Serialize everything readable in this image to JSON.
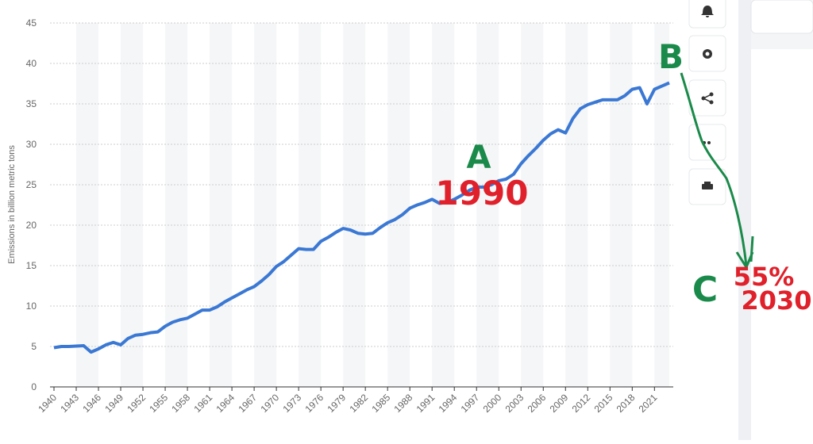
{
  "chart_data": {
    "type": "line",
    "y_label": "Emissions in billion metric tons",
    "x": [
      1940,
      1941,
      1942,
      1943,
      1944,
      1945,
      1946,
      1947,
      1948,
      1949,
      1950,
      1951,
      1952,
      1953,
      1954,
      1955,
      1956,
      1957,
      1958,
      1959,
      1960,
      1961,
      1962,
      1963,
      1964,
      1965,
      1966,
      1967,
      1968,
      1969,
      1970,
      1971,
      1972,
      1973,
      1974,
      1975,
      1976,
      1977,
      1978,
      1979,
      1980,
      1981,
      1982,
      1983,
      1984,
      1985,
      1986,
      1987,
      1988,
      1989,
      1990,
      1991,
      1992,
      1993,
      1994,
      1995,
      1996,
      1997,
      1998,
      1999,
      2000,
      2001,
      2002,
      2003,
      2004,
      2005,
      2006,
      2007,
      2008,
      2009,
      2010,
      2011,
      2012,
      2013,
      2014,
      2015,
      2016,
      2017,
      2018,
      2019,
      2020,
      2021,
      2022,
      2023
    ],
    "series": [
      {
        "name": "Emissions",
        "color": "#3a78d4",
        "values": [
          4.85,
          5.0,
          5.0,
          5.05,
          5.1,
          4.3,
          4.7,
          5.2,
          5.5,
          5.2,
          6.0,
          6.4,
          6.5,
          6.7,
          6.8,
          7.5,
          8.0,
          8.3,
          8.5,
          9.0,
          9.5,
          9.5,
          9.9,
          10.5,
          11.0,
          11.5,
          12.0,
          12.4,
          13.1,
          13.9,
          14.9,
          15.5,
          16.3,
          17.1,
          17.0,
          17.0,
          18.0,
          18.5,
          19.1,
          19.6,
          19.4,
          19.0,
          18.9,
          19.0,
          19.7,
          20.3,
          20.7,
          21.3,
          22.1,
          22.5,
          22.8,
          23.2,
          22.7,
          22.8,
          23.2,
          23.7,
          24.3,
          24.7,
          24.7,
          25.0,
          25.5,
          25.7,
          26.3,
          27.6,
          28.6,
          29.5,
          30.5,
          31.3,
          31.8,
          31.4,
          33.2,
          34.4,
          34.9,
          35.2,
          35.5,
          35.5,
          35.5,
          36.0,
          36.8,
          37.0,
          35.0,
          36.8,
          37.2,
          37.6
        ]
      }
    ],
    "xlim": [
      1940,
      2023
    ],
    "xticks": [
      1940,
      1943,
      1946,
      1949,
      1952,
      1955,
      1958,
      1961,
      1964,
      1967,
      1970,
      1973,
      1976,
      1979,
      1982,
      1985,
      1988,
      1991,
      1994,
      1997,
      2000,
      2003,
      2006,
      2009,
      2012,
      2015,
      2018,
      2021
    ],
    "ylim": [
      0,
      45
    ],
    "yticks": [
      0,
      5,
      10,
      15,
      20,
      25,
      30,
      35,
      40,
      45
    ],
    "grid": true,
    "annotations": [
      {
        "text": "A",
        "color": "#1a8a4a"
      },
      {
        "text": "1990",
        "color": "#e0202a"
      },
      {
        "text": "B",
        "color": "#1a8a4a"
      },
      {
        "text": "C",
        "color": "#1a8a4a"
      },
      {
        "text": "55%",
        "color": "#e0202a"
      },
      {
        "text": "2030",
        "color": "#e0202a"
      }
    ]
  }
}
